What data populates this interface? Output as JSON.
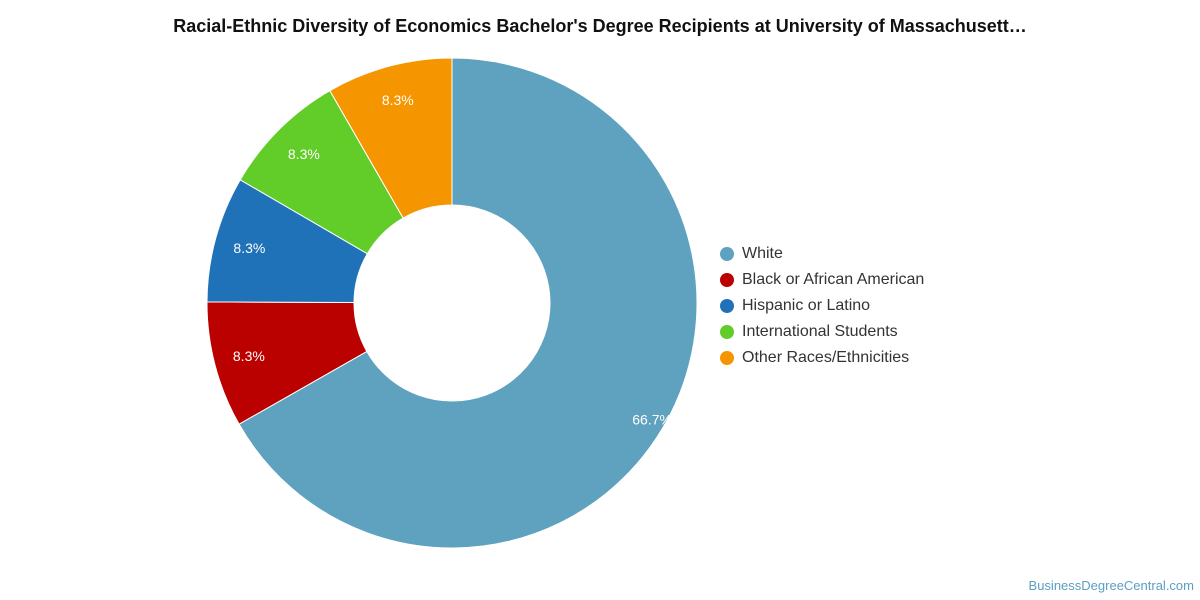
{
  "chart_data": {
    "type": "pie",
    "donut": true,
    "title": "Racial-Ethnic Diversity of Economics Bachelor's Degree Recipients at University of Massachusett…",
    "series": [
      {
        "name": "White",
        "value": 66.7,
        "label": "66.7%",
        "color": "#5ea2bf"
      },
      {
        "name": "Black or African American",
        "value": 8.3,
        "label": "8.3%",
        "color": "#bb0000"
      },
      {
        "name": "Hispanic or Latino",
        "value": 8.3,
        "label": "8.3%",
        "color": "#1f72b8"
      },
      {
        "name": "International Students",
        "value": 8.3,
        "label": "8.3%",
        "color": "#62cc29"
      },
      {
        "name": "Other Races/Ethnicities",
        "value": 8.3,
        "label": "8.3%",
        "color": "#f59600"
      }
    ],
    "legend_position": "right"
  },
  "watermark": "BusinessDegreeCentral.com"
}
